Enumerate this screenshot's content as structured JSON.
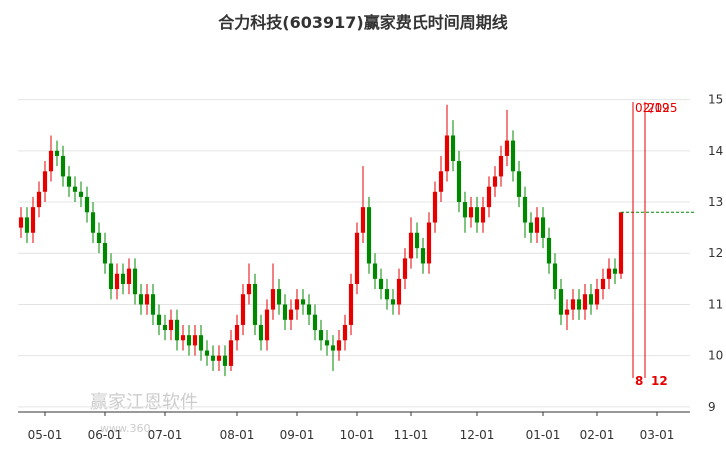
{
  "chart_data": {
    "type": "candlestick",
    "title": "合力科技(603917)赢家费氏时间周期线",
    "categories": [
      null,
      null,
      null,
      null,
      "05-01",
      null,
      null,
      null,
      null,
      null,
      null,
      null,
      null,
      null,
      "06-01",
      null,
      null,
      null,
      null,
      null,
      null,
      null,
      null,
      null,
      "07-01",
      null,
      null,
      null,
      null,
      null,
      null,
      null,
      null,
      null,
      null,
      null,
      "08-01",
      null,
      null,
      null,
      null,
      null,
      null,
      null,
      null,
      null,
      "09-01",
      null,
      null,
      null,
      null,
      null,
      null,
      null,
      null,
      null,
      "10-01",
      null,
      null,
      null,
      null,
      null,
      null,
      null,
      null,
      "11-01",
      null,
      null,
      null,
      null,
      null,
      null,
      null,
      null,
      null,
      null,
      "12-01",
      null,
      null,
      null,
      null,
      null,
      null,
      null,
      null,
      null,
      null,
      "01-01",
      null,
      null,
      null,
      null,
      null,
      null,
      null,
      null,
      "02-01",
      null,
      null,
      null,
      null,
      null,
      null,
      null,
      null,
      null,
      "03-01",
      null,
      null,
      null,
      null,
      null
    ],
    "open": [
      12.5,
      12.7,
      12.4,
      12.9,
      13.2,
      13.6,
      14.0,
      13.9,
      13.5,
      13.3,
      13.2,
      13.1,
      12.8,
      12.4,
      12.2,
      11.8,
      11.3,
      11.6,
      11.4,
      11.7,
      11.2,
      11.0,
      11.2,
      10.8,
      10.6,
      10.5,
      10.7,
      10.3,
      10.4,
      10.2,
      10.4,
      10.1,
      10.0,
      9.9,
      10.0,
      9.8,
      10.3,
      10.6,
      11.2,
      11.4,
      10.6,
      10.3,
      10.9,
      11.3,
      11.0,
      10.7,
      10.9,
      11.1,
      11.0,
      10.8,
      10.5,
      10.3,
      10.2,
      10.1,
      10.3,
      10.6,
      11.4,
      12.4,
      12.9,
      11.8,
      11.5,
      11.3,
      11.1,
      11.0,
      11.5,
      11.9,
      12.4,
      12.1,
      11.8,
      12.6,
      13.2,
      13.6,
      14.3,
      13.8,
      13.0,
      12.7,
      12.9,
      12.6,
      12.9,
      13.3,
      13.5,
      13.9,
      14.2,
      13.6,
      13.1,
      12.6,
      12.4,
      12.7,
      12.3,
      11.8,
      11.3,
      10.8,
      10.9,
      11.1,
      10.9,
      11.2,
      11.0,
      11.3,
      11.5,
      11.7,
      11.6,
      null,
      null,
      null,
      null,
      null,
      null,
      null,
      null,
      null,
      null,
      null
    ],
    "high": [
      12.9,
      12.9,
      13.1,
      13.4,
      13.8,
      14.3,
      14.2,
      14.1,
      13.7,
      13.5,
      13.4,
      13.3,
      13.0,
      12.6,
      12.4,
      12.0,
      11.8,
      11.8,
      11.9,
      11.9,
      11.4,
      11.4,
      11.4,
      11.0,
      10.8,
      10.9,
      10.9,
      10.6,
      10.6,
      10.6,
      10.6,
      10.3,
      10.2,
      10.2,
      10.2,
      10.5,
      10.8,
      11.4,
      11.8,
      11.6,
      10.8,
      11.1,
      11.8,
      11.5,
      11.2,
      11.1,
      11.3,
      11.3,
      11.2,
      11.0,
      10.7,
      10.5,
      10.4,
      10.5,
      10.8,
      11.6,
      12.6,
      13.7,
      13.1,
      12.0,
      11.7,
      11.5,
      11.3,
      11.7,
      12.1,
      12.7,
      12.6,
      12.3,
      12.8,
      13.4,
      13.9,
      14.9,
      14.6,
      14.0,
      13.2,
      13.1,
      13.1,
      13.1,
      13.5,
      13.7,
      14.1,
      14.8,
      14.4,
      13.8,
      13.3,
      12.8,
      12.9,
      12.9,
      12.5,
      12.0,
      11.5,
      11.1,
      11.3,
      11.3,
      11.4,
      11.4,
      11.5,
      11.7,
      11.9,
      11.9,
      12.8,
      null,
      null,
      null,
      null,
      null,
      null,
      null,
      null,
      null,
      null,
      null
    ],
    "low": [
      12.3,
      12.2,
      12.2,
      12.7,
      13.0,
      13.4,
      13.7,
      13.3,
      13.1,
      13.0,
      12.9,
      12.6,
      12.2,
      12.0,
      11.6,
      11.1,
      11.1,
      11.2,
      11.2,
      11.0,
      10.8,
      10.8,
      10.6,
      10.4,
      10.3,
      10.3,
      10.1,
      10.1,
      10.0,
      10.0,
      9.9,
      9.8,
      9.7,
      9.7,
      9.6,
      9.7,
      10.1,
      10.4,
      11.0,
      10.4,
      10.1,
      10.1,
      10.7,
      10.8,
      10.5,
      10.5,
      10.7,
      10.8,
      10.6,
      10.3,
      10.1,
      10.0,
      9.7,
      9.9,
      10.1,
      10.4,
      11.2,
      12.2,
      11.6,
      11.3,
      11.1,
      10.9,
      10.8,
      10.8,
      11.3,
      11.7,
      11.9,
      11.6,
      11.6,
      12.4,
      13.0,
      13.4,
      13.6,
      12.8,
      12.4,
      12.5,
      12.4,
      12.4,
      12.7,
      13.1,
      13.3,
      13.7,
      13.4,
      12.9,
      12.3,
      12.2,
      12.2,
      12.1,
      11.6,
      11.1,
      10.6,
      10.5,
      10.7,
      10.7,
      10.7,
      10.8,
      10.9,
      11.1,
      11.3,
      11.4,
      11.5,
      null,
      null,
      null,
      null,
      null,
      null,
      null,
      null,
      null,
      null,
      null
    ],
    "close": [
      12.7,
      12.4,
      12.9,
      13.2,
      13.6,
      14.0,
      13.9,
      13.5,
      13.3,
      13.2,
      13.1,
      12.8,
      12.4,
      12.2,
      11.8,
      11.3,
      11.6,
      11.4,
      11.7,
      11.2,
      11.0,
      11.2,
      10.8,
      10.6,
      10.5,
      10.7,
      10.3,
      10.4,
      10.2,
      10.4,
      10.1,
      10.0,
      9.9,
      10.0,
      9.8,
      10.3,
      10.6,
      11.2,
      11.4,
      10.6,
      10.3,
      10.9,
      11.3,
      11.0,
      10.7,
      10.9,
      11.1,
      11.0,
      10.8,
      10.5,
      10.3,
      10.2,
      10.1,
      10.3,
      10.6,
      11.4,
      12.4,
      12.9,
      11.8,
      11.5,
      11.3,
      11.1,
      11.0,
      11.5,
      11.9,
      12.4,
      12.1,
      11.8,
      12.6,
      13.2,
      13.6,
      14.3,
      13.8,
      13.0,
      12.7,
      12.9,
      12.6,
      12.9,
      13.3,
      13.5,
      13.9,
      14.2,
      13.6,
      13.1,
      12.6,
      12.4,
      12.7,
      12.3,
      11.8,
      11.3,
      10.8,
      10.9,
      11.1,
      10.9,
      11.2,
      11.0,
      11.3,
      11.5,
      11.7,
      11.6,
      12.8,
      null,
      null,
      null,
      null,
      null,
      null,
      null,
      null,
      null,
      null,
      null
    ],
    "up_color": "#e60000",
    "down_color": "#008800",
    "ylim": [
      8.9,
      15.5
    ],
    "yticks": [
      9,
      10,
      11,
      12,
      13,
      14,
      15
    ],
    "grid": true,
    "hline": 12.8,
    "hline_color": "#008800",
    "time_lines": [
      {
        "top": "02/19",
        "bottom": "8"
      },
      {
        "top": "2025",
        "bottom": "12"
      }
    ],
    "watermark": "赢家江恩软件",
    "watermark_url": "www.360..."
  }
}
